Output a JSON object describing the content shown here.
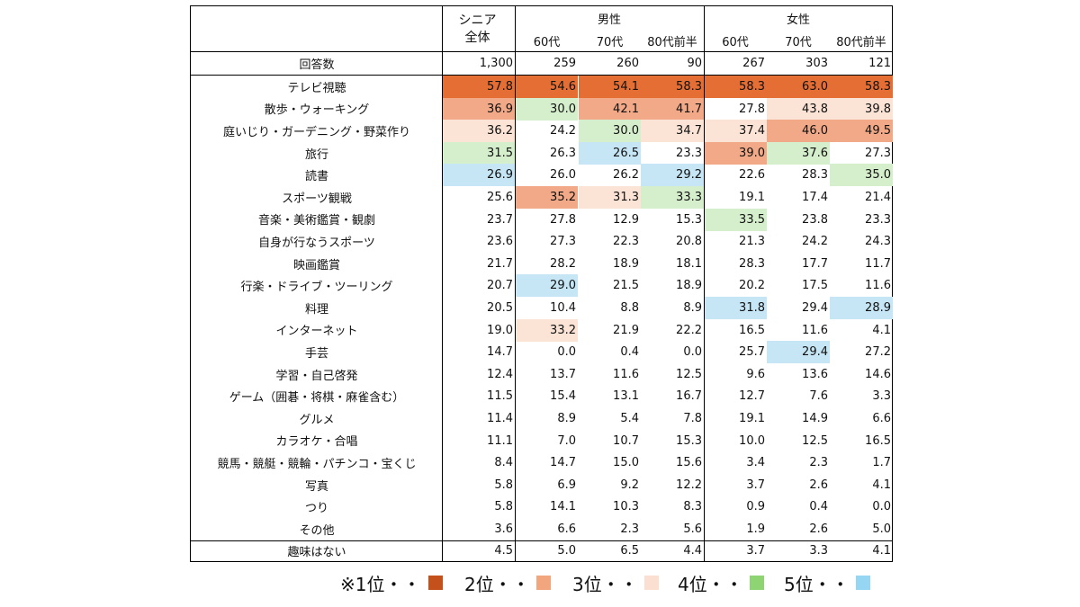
{
  "colors": {
    "rank1": "#e56e35",
    "rank2": "#f1a987",
    "rank3": "#fbe3d6",
    "rank4": "#d5efcc",
    "rank5": "#c6e6f5",
    "legend1": "#c4501b",
    "legend2": "#f1a67e",
    "legend3": "#fbe0d2",
    "legend4": "#8ed473",
    "legend5": "#96d6f2"
  },
  "header": {
    "total_line1": "シニア",
    "total_line2": "全体",
    "male": "男性",
    "female": "女性",
    "sub": [
      "60代",
      "70代",
      "80代前半",
      "60代",
      "70代",
      "80代前半"
    ]
  },
  "count_row": {
    "label": "回答数",
    "values": [
      "1,300",
      "259",
      "260",
      "90",
      "267",
      "303",
      "121"
    ]
  },
  "chart_data": {
    "type": "table",
    "columns": [
      "シニア全体",
      "男性 60代",
      "男性 70代",
      "男性 80代前半",
      "女性 60代",
      "女性 70代",
      "女性 80代前半"
    ],
    "rows": [
      {
        "label": "テレビ視聴",
        "values": [
          "57.8",
          "54.6",
          "54.1",
          "58.3",
          "58.3",
          "63.0",
          "58.3"
        ],
        "ranks": [
          1,
          1,
          1,
          1,
          1,
          1,
          1
        ]
      },
      {
        "label": "散歩・ウォーキング",
        "values": [
          "36.9",
          "30.0",
          "42.1",
          "41.7",
          "27.8",
          "43.8",
          "39.8"
        ],
        "ranks": [
          2,
          4,
          2,
          2,
          0,
          3,
          3
        ]
      },
      {
        "label": "庭いじり・ガーデニング・野菜作り",
        "values": [
          "36.2",
          "24.2",
          "30.0",
          "34.7",
          "37.4",
          "46.0",
          "49.5"
        ],
        "ranks": [
          3,
          0,
          4,
          3,
          3,
          2,
          2
        ]
      },
      {
        "label": "旅行",
        "values": [
          "31.5",
          "26.3",
          "26.5",
          "23.3",
          "39.0",
          "37.6",
          "27.3"
        ],
        "ranks": [
          4,
          0,
          5,
          0,
          2,
          4,
          0
        ]
      },
      {
        "label": "読書",
        "values": [
          "26.9",
          "26.0",
          "26.2",
          "29.2",
          "22.6",
          "28.3",
          "35.0"
        ],
        "ranks": [
          5,
          0,
          0,
          5,
          0,
          0,
          4
        ]
      },
      {
        "label": "スポーツ観戦",
        "values": [
          "25.6",
          "35.2",
          "31.3",
          "33.3",
          "19.1",
          "17.4",
          "21.4"
        ],
        "ranks": [
          0,
          2,
          3,
          4,
          0,
          0,
          0
        ]
      },
      {
        "label": "音楽・美術鑑賞・観劇",
        "values": [
          "23.7",
          "27.8",
          "12.9",
          "15.3",
          "33.5",
          "23.8",
          "23.3"
        ],
        "ranks": [
          0,
          0,
          0,
          0,
          4,
          0,
          0
        ]
      },
      {
        "label": "自身が行なうスポーツ",
        "values": [
          "23.6",
          "27.3",
          "22.3",
          "20.8",
          "21.3",
          "24.2",
          "24.3"
        ],
        "ranks": [
          0,
          0,
          0,
          0,
          0,
          0,
          0
        ]
      },
      {
        "label": "映画鑑賞",
        "values": [
          "21.7",
          "28.2",
          "18.9",
          "18.1",
          "28.3",
          "17.7",
          "11.7"
        ],
        "ranks": [
          0,
          0,
          0,
          0,
          0,
          0,
          0
        ]
      },
      {
        "label": "行楽・ドライブ・ツーリング",
        "values": [
          "20.7",
          "29.0",
          "21.5",
          "18.9",
          "20.2",
          "17.5",
          "11.6"
        ],
        "ranks": [
          0,
          5,
          0,
          0,
          0,
          0,
          0
        ]
      },
      {
        "label": "料理",
        "values": [
          "20.5",
          "10.4",
          "8.8",
          "8.9",
          "31.8",
          "29.4",
          "28.9"
        ],
        "ranks": [
          0,
          0,
          0,
          0,
          5,
          0,
          5
        ]
      },
      {
        "label": "インターネット",
        "values": [
          "19.0",
          "33.2",
          "21.9",
          "22.2",
          "16.5",
          "11.6",
          "4.1"
        ],
        "ranks": [
          0,
          3,
          0,
          0,
          0,
          0,
          0
        ]
      },
      {
        "label": "手芸",
        "values": [
          "14.7",
          "0.0",
          "0.4",
          "0.0",
          "25.7",
          "29.4",
          "27.2"
        ],
        "ranks": [
          0,
          0,
          0,
          0,
          0,
          5,
          0
        ]
      },
      {
        "label": "学習・自己啓発",
        "values": [
          "12.4",
          "13.7",
          "11.6",
          "12.5",
          "9.6",
          "13.6",
          "14.6"
        ],
        "ranks": [
          0,
          0,
          0,
          0,
          0,
          0,
          0
        ]
      },
      {
        "label": "ゲーム（囲碁・将棋・麻雀含む）",
        "values": [
          "11.5",
          "15.4",
          "13.1",
          "16.7",
          "12.7",
          "7.6",
          "3.3"
        ],
        "ranks": [
          0,
          0,
          0,
          0,
          0,
          0,
          0
        ]
      },
      {
        "label": "グルメ",
        "values": [
          "11.4",
          "8.9",
          "5.4",
          "7.8",
          "19.1",
          "14.9",
          "6.6"
        ],
        "ranks": [
          0,
          0,
          0,
          0,
          0,
          0,
          0
        ]
      },
      {
        "label": "カラオケ・合唱",
        "values": [
          "11.1",
          "7.0",
          "10.7",
          "15.3",
          "10.0",
          "12.5",
          "16.5"
        ],
        "ranks": [
          0,
          0,
          0,
          0,
          0,
          0,
          0
        ]
      },
      {
        "label": "競馬・競艇・競輪・パチンコ・宝くじ",
        "values": [
          "8.4",
          "14.7",
          "15.0",
          "15.6",
          "3.4",
          "2.3",
          "1.7"
        ],
        "ranks": [
          0,
          0,
          0,
          0,
          0,
          0,
          0
        ]
      },
      {
        "label": "写真",
        "values": [
          "5.8",
          "6.9",
          "9.2",
          "12.2",
          "3.7",
          "2.6",
          "4.1"
        ],
        "ranks": [
          0,
          0,
          0,
          0,
          0,
          0,
          0
        ]
      },
      {
        "label": "つり",
        "values": [
          "5.8",
          "14.1",
          "10.3",
          "8.3",
          "0.9",
          "0.4",
          "0.0"
        ],
        "ranks": [
          0,
          0,
          0,
          0,
          0,
          0,
          0
        ]
      },
      {
        "label": "その他",
        "values": [
          "3.6",
          "6.6",
          "2.3",
          "5.6",
          "1.9",
          "2.6",
          "5.0"
        ],
        "ranks": [
          0,
          0,
          0,
          0,
          0,
          0,
          0
        ]
      }
    ],
    "none_row": {
      "label": "趣味はない",
      "values": [
        "4.5",
        "5.0",
        "6.5",
        "4.4",
        "3.7",
        "3.3",
        "4.1"
      ]
    }
  },
  "legend": [
    {
      "text": "※1位・・",
      "color_key": "legend1"
    },
    {
      "text": "2位・・",
      "color_key": "legend2"
    },
    {
      "text": "3位・・",
      "color_key": "legend3"
    },
    {
      "text": "4位・・",
      "color_key": "legend4"
    },
    {
      "text": "5位・・",
      "color_key": "legend5"
    }
  ]
}
